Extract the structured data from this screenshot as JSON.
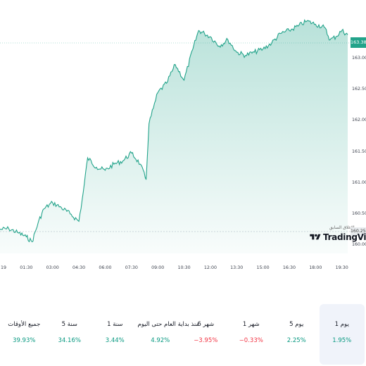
{
  "chart": {
    "current_price": "163.382",
    "previous_close_value": "160.254",
    "previous_close_label": "الإغلاق السابق",
    "logo_text": "TradingView",
    "y_ticks": [
      "163.000",
      "162.500",
      "162.000",
      "161.500",
      "161.000",
      "160.500",
      "160.000"
    ],
    "x_ticks": [
      "19",
      "01:30",
      "03:00",
      "04:30",
      "06:00",
      "07:30",
      "09:00",
      "10:30",
      "12:00",
      "13:30",
      "15:00",
      "16:30",
      "18:00",
      "19:30"
    ],
    "line_color": "#22a38a",
    "fill_color": "#22a38a"
  },
  "chart_data": {
    "type": "area",
    "x": [
      "00:00",
      "00:30",
      "01:00",
      "01:30",
      "01:50",
      "02:10",
      "02:30",
      "03:00",
      "03:30",
      "04:00",
      "04:30",
      "04:45",
      "05:00",
      "05:30",
      "06:00",
      "06:30",
      "07:00",
      "07:30",
      "08:00",
      "08:20",
      "08:30",
      "08:45",
      "09:00",
      "09:30",
      "10:00",
      "10:30",
      "11:00",
      "11:20",
      "11:40",
      "12:00",
      "12:30",
      "13:00",
      "13:30",
      "14:00",
      "14:30",
      "15:00",
      "15:30",
      "16:00",
      "16:30",
      "17:00",
      "17:30",
      "18:00",
      "18:30",
      "18:50",
      "19:10",
      "19:30",
      "19:50"
    ],
    "values": [
      160.25,
      160.26,
      160.2,
      160.13,
      160.05,
      160.35,
      160.58,
      160.68,
      160.6,
      160.5,
      160.38,
      160.85,
      161.4,
      161.25,
      161.2,
      161.3,
      161.35,
      161.48,
      161.3,
      161.05,
      161.95,
      162.2,
      162.45,
      162.6,
      162.9,
      162.65,
      163.15,
      163.45,
      163.4,
      163.35,
      163.2,
      163.3,
      163.1,
      163.05,
      163.1,
      163.15,
      163.25,
      163.4,
      163.45,
      163.52,
      163.6,
      163.55,
      163.5,
      163.3,
      163.35,
      163.45,
      163.38
    ],
    "ylim": [
      160.0,
      163.6
    ],
    "grid": false
  },
  "periods": [
    {
      "label": "1 يوم",
      "value": "1.95%",
      "sign": "pos",
      "active": true
    },
    {
      "label": "5 يوم",
      "value": "2.25%",
      "sign": "pos",
      "active": false
    },
    {
      "label": "1 شهر",
      "value": "−0.33%",
      "sign": "neg",
      "active": false
    },
    {
      "label": "6 شهر",
      "value": "−3.95%",
      "sign": "neg",
      "active": false
    },
    {
      "label": "منذ بداية العام حتى اليوم",
      "value": "4.92%",
      "sign": "pos",
      "active": false
    },
    {
      "label": "1 سنة",
      "value": "3.44%",
      "sign": "pos",
      "active": false
    },
    {
      "label": "5 سنة",
      "value": "34.16%",
      "sign": "pos",
      "active": false
    },
    {
      "label": "جميع الأوقات",
      "value": "39.93%",
      "sign": "pos",
      "active": false
    }
  ]
}
